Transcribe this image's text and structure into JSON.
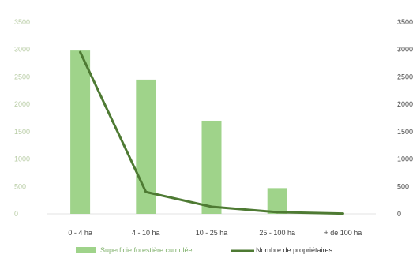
{
  "chart_data": {
    "type": "bar",
    "categories": [
      "0 - 4 ha",
      "4 - 10 ha",
      "10 - 25 ha",
      "25 - 100 ha",
      "+ de 100 ha"
    ],
    "series": [
      {
        "name": "Superficie forestière cumulée",
        "type": "bar",
        "axis": "left",
        "values": [
          2980,
          2450,
          1700,
          470,
          0
        ]
      },
      {
        "name": "Nombre de propriétaires",
        "type": "line",
        "axis": "right",
        "values": [
          2950,
          400,
          130,
          30,
          5
        ]
      }
    ],
    "y_left": {
      "ylim": [
        0,
        3500
      ],
      "ticks": [
        "0",
        "500",
        "1000",
        "1500",
        "2000",
        "2500",
        "3000",
        "3500"
      ]
    },
    "y_right": {
      "ylim": [
        0,
        3500
      ],
      "ticks": [
        "0",
        "500",
        "1000",
        "1500",
        "2000",
        "2500",
        "3000",
        "3500"
      ]
    },
    "title": "",
    "xlabel": "",
    "ylabel": "",
    "grid": false,
    "legend": "bottom",
    "colors": {
      "bar": "#9fd38a",
      "line": "#4e7a33",
      "left_ticks": "#b9cda6",
      "right_ticks": "#4a4a4a",
      "x_ticks": "#444444"
    }
  }
}
